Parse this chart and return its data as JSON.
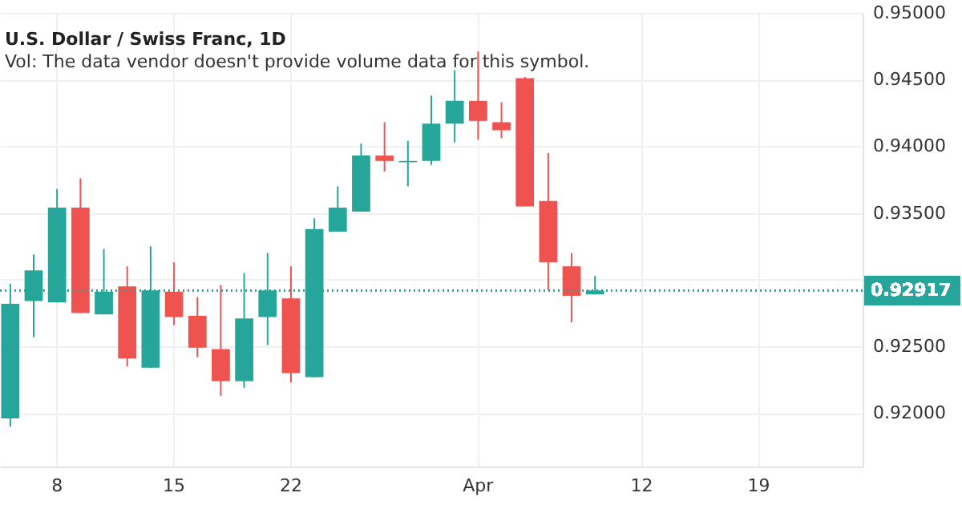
{
  "chart_data": {
    "type": "candlestick",
    "title": "U.S. Dollar / Swiss Franc, 1D",
    "subtitle": "Vol: The data vendor doesn't provide volume data for this symbol.",
    "categories": [
      null,
      null,
      "8",
      null,
      null,
      null,
      null,
      "15",
      null,
      null,
      null,
      null,
      "22",
      null,
      null,
      null,
      null,
      null,
      null,
      null,
      "Apr",
      null,
      null,
      null,
      null,
      null,
      null,
      "12",
      null,
      null,
      null,
      null,
      "19",
      null,
      null,
      null,
      null
    ],
    "ohlc": [
      [
        0.9196,
        0.9297,
        0.919,
        0.9282
      ],
      [
        0.9284,
        0.9319,
        0.9257,
        0.9307
      ],
      [
        0.9283,
        0.9368,
        0.9283,
        0.9354
      ],
      [
        0.9354,
        0.9376,
        0.9275,
        0.9275
      ],
      [
        0.9274,
        0.9323,
        0.9274,
        0.9291
      ],
      [
        0.9295,
        0.931,
        0.9235,
        0.9241
      ],
      [
        0.9234,
        0.9325,
        0.9234,
        0.9292
      ],
      [
        0.9291,
        0.9313,
        0.9266,
        0.9272
      ],
      [
        0.9273,
        0.9287,
        0.9242,
        0.9249
      ],
      [
        0.9248,
        0.9296,
        0.9213,
        0.9224
      ],
      [
        0.9224,
        0.9305,
        0.9219,
        0.9271
      ],
      [
        0.9272,
        0.932,
        0.9251,
        0.9292
      ],
      [
        0.9286,
        0.931,
        0.9223,
        0.923
      ],
      [
        0.9227,
        0.9346,
        0.9227,
        0.9338
      ],
      [
        0.9336,
        0.937,
        0.9336,
        0.9354
      ],
      [
        0.9351,
        0.9402,
        0.9351,
        0.9393
      ],
      [
        0.9393,
        0.9418,
        0.9381,
        0.9389
      ],
      [
        0.9388,
        0.9404,
        0.937,
        0.9389
      ],
      [
        0.9389,
        0.9438,
        0.9386,
        0.9417
      ],
      [
        0.9417,
        0.9457,
        0.9403,
        0.9434
      ],
      [
        0.9434,
        0.9471,
        0.9405,
        0.9419
      ],
      [
        0.9418,
        0.9433,
        0.9406,
        0.9412
      ],
      [
        0.9451,
        0.9452,
        0.9355,
        0.9355
      ],
      [
        0.9359,
        0.9395,
        0.9292,
        0.9313
      ],
      [
        0.931,
        0.932,
        0.9268,
        0.9288
      ],
      [
        0.9289,
        0.9303,
        0.9289,
        0.9292
      ],
      null,
      null,
      null,
      null,
      null,
      null,
      null,
      null,
      null,
      null,
      null
    ],
    "colors": [
      "#26a69a",
      "#26a69a",
      "#26a69a",
      "#ef5350",
      "#26a69a",
      "#ef5350",
      "#26a69a",
      "#ef5350",
      "#ef5350",
      "#ef5350",
      "#26a69a",
      "#26a69a",
      "#ef5350",
      "#26a69a",
      "#26a69a",
      "#26a69a",
      "#ef5350",
      "#26a69a",
      "#26a69a",
      "#26a69a",
      "#ef5350",
      "#ef5350",
      "#ef5350",
      "#ef5350",
      "#ef5350",
      "#26a69a",
      null,
      null,
      null,
      null,
      null,
      null,
      null,
      null,
      null,
      null,
      null
    ],
    "ylim": [
      0.916,
      0.95
    ],
    "yticks": [
      {
        "value": 0.92,
        "label": "0.92000"
      },
      {
        "value": 0.925,
        "label": "0.92500"
      },
      {
        "value": 0.93,
        "label": null
      },
      {
        "value": 0.935,
        "label": "0.93500"
      },
      {
        "value": 0.94,
        "label": "0.94000"
      },
      {
        "value": 0.945,
        "label": "0.94500"
      },
      {
        "value": 0.95,
        "label": "0.95000"
      }
    ],
    "ref_lines": [
      {
        "axis": "y",
        "value": 0.92917,
        "label": "0.92917",
        "color": "#26a69a",
        "line_style": "dotted"
      }
    ],
    "grid": true
  }
}
